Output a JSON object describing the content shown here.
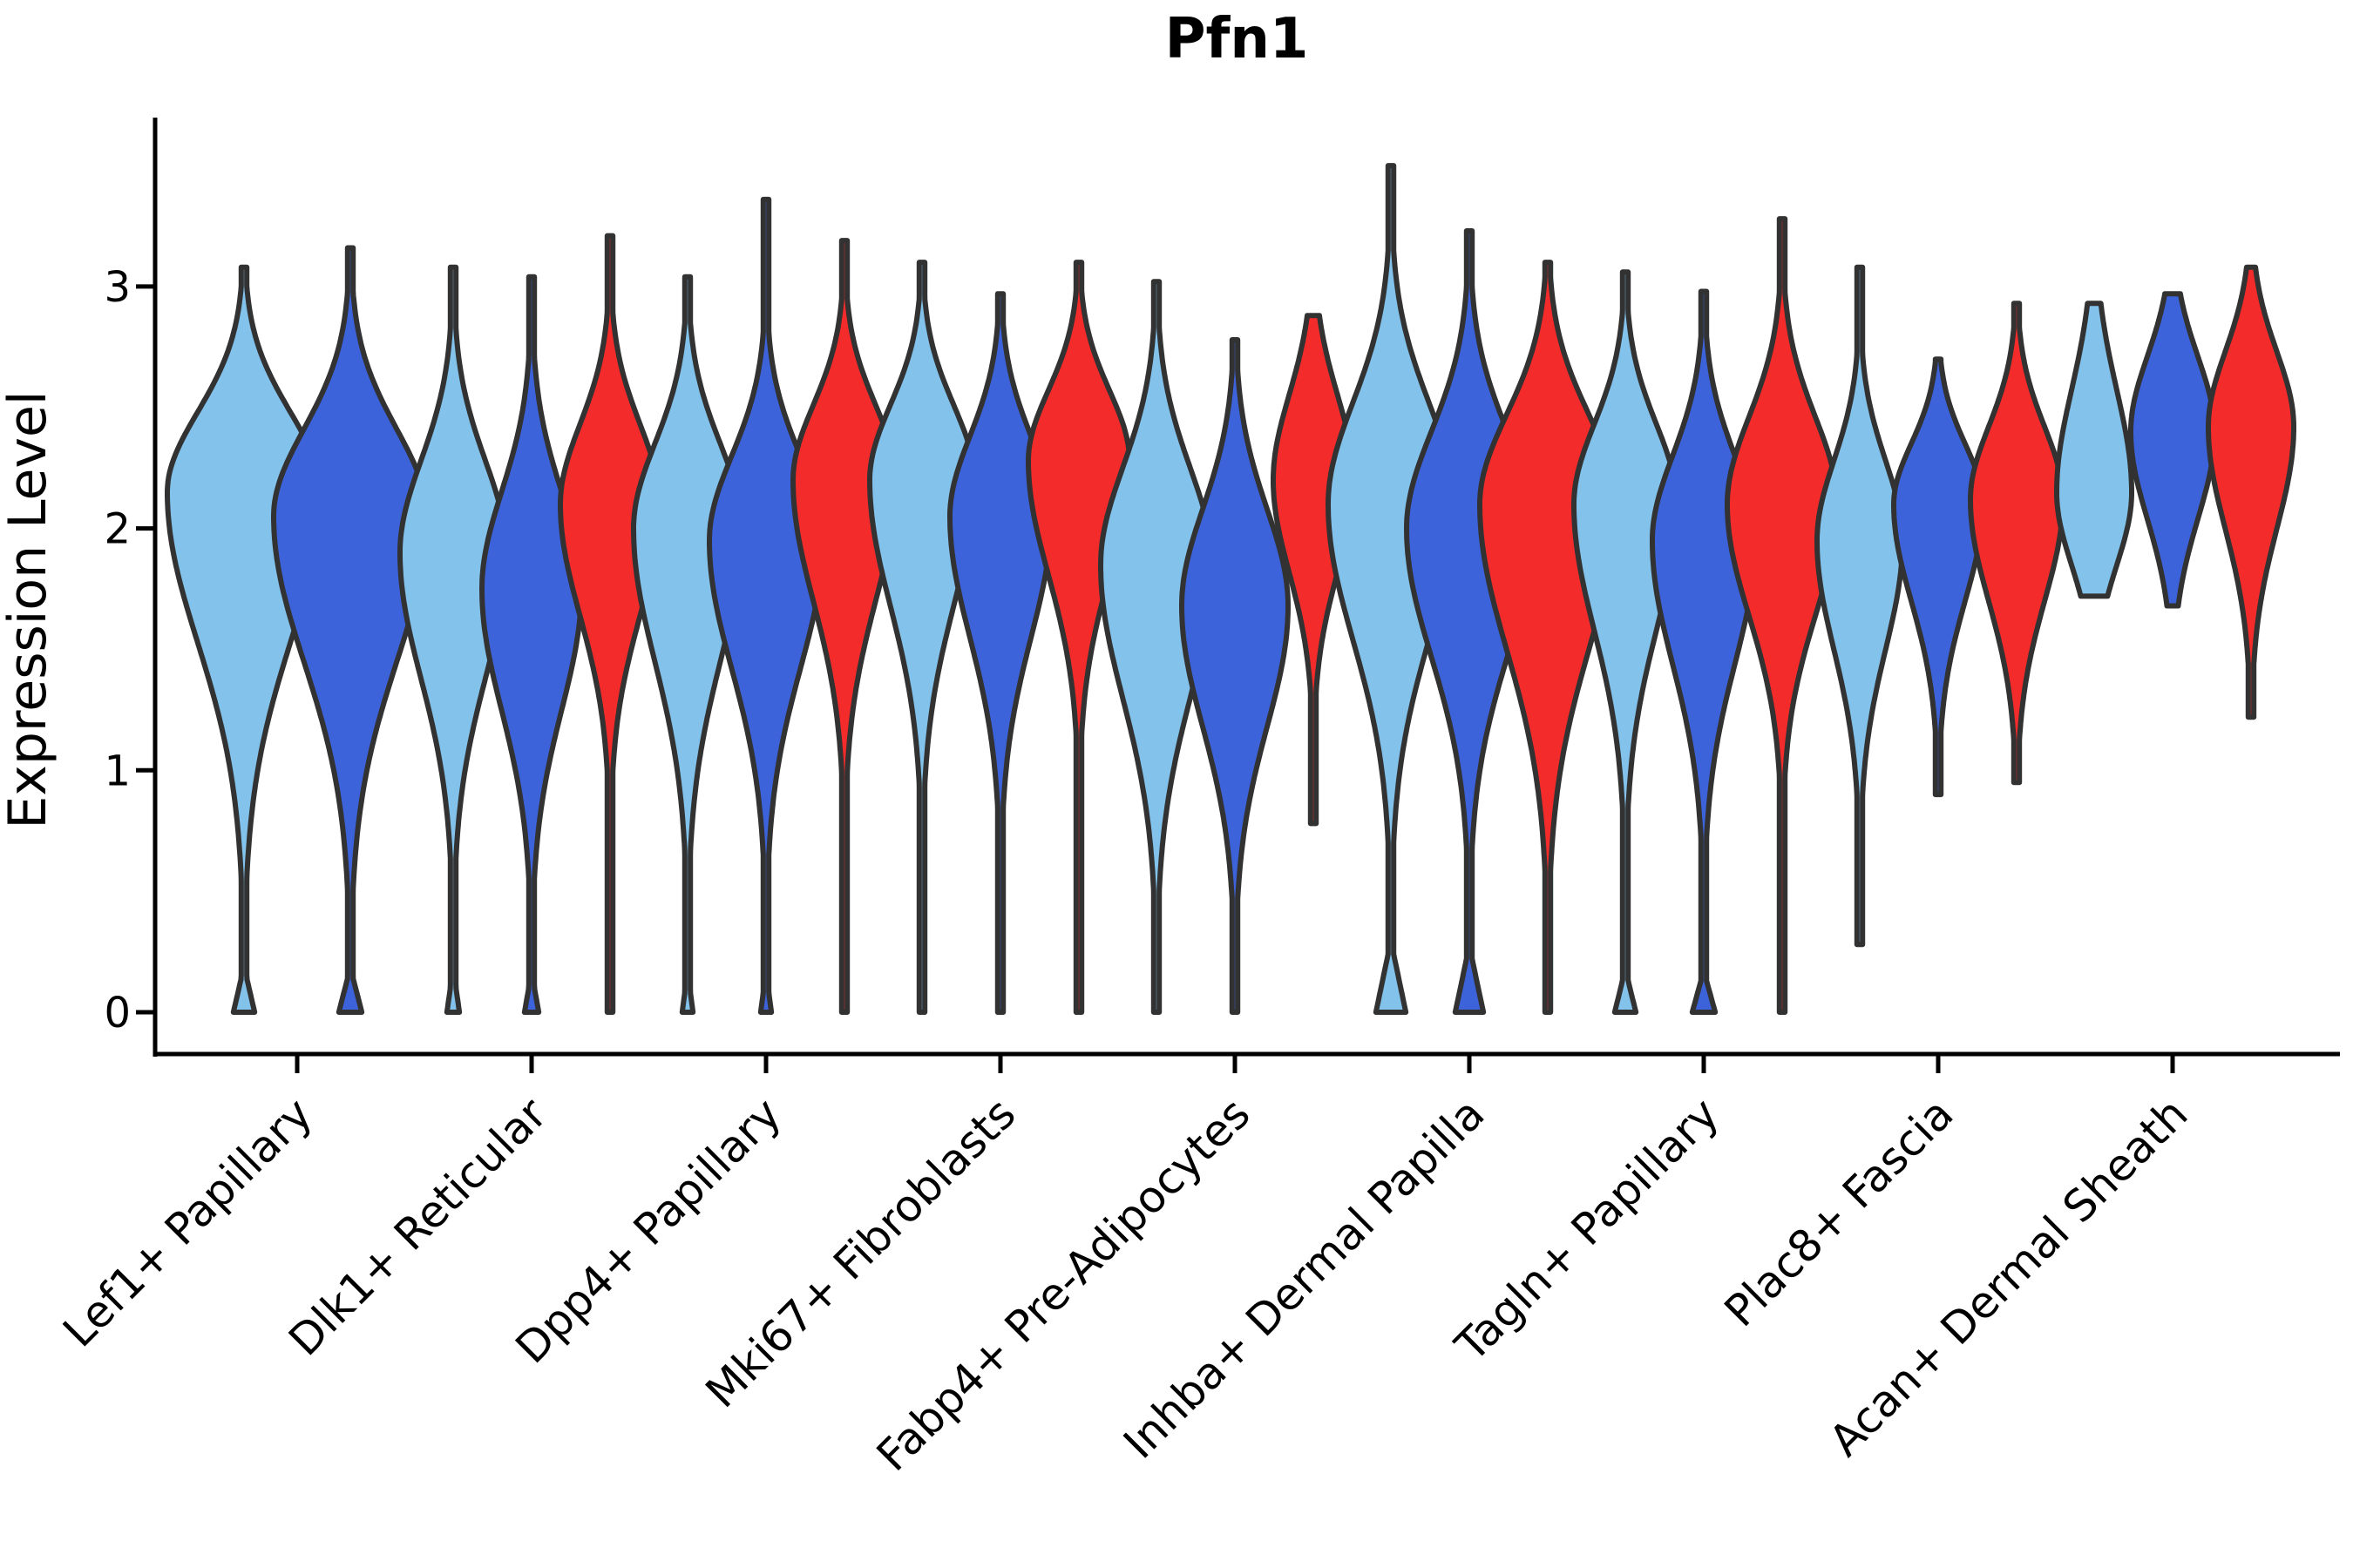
{
  "chart_data": {
    "type": "violin",
    "title": "Pfn1",
    "xlabel": "",
    "ylabel": "Expression Level",
    "yticks": [
      0,
      1,
      2,
      3
    ],
    "ylim": [
      -0.17,
      3.7
    ],
    "grid": false,
    "legend": "none",
    "categories": [
      "Lef1+ Papillary",
      "Dlk1+ Reticular",
      "Dpp4+ Papillary",
      "Mki67+ Fibroblasts",
      "Fabp4+ Pre-Adipocytes",
      "Inhba+ Dermal Papilla",
      "Tagln+ Papillary",
      "Plac8+ Fascia",
      "Acan+ Dermal Sheath"
    ],
    "splits": [
      {
        "key": "split-light-blue",
        "color": "#82C2EB"
      },
      {
        "key": "split-dark-blue",
        "color": "#3D63DB"
      },
      {
        "key": "split-red",
        "color": "#F32B2B"
      }
    ],
    "outline_color": "#323232",
    "violins": [
      {
        "category": 0,
        "split": 0,
        "peak": 2.15,
        "spread_above": 0.33,
        "spread_below": 0.62,
        "max_halfwidth": 88,
        "min": 0,
        "max": 3.08,
        "foot_halfwidth": 9,
        "foot_height": 0.14
      },
      {
        "category": 0,
        "split": 1,
        "peak": 2.05,
        "spread_above": 0.36,
        "spread_below": 0.6,
        "max_halfwidth": 88,
        "min": 0,
        "max": 3.16,
        "foot_halfwidth": 10,
        "foot_height": 0.14
      },
      {
        "category": 1,
        "split": 0,
        "peak": 1.9,
        "spread_above": 0.38,
        "spread_below": 0.52,
        "max_halfwidth": 61,
        "min": 0,
        "max": 3.08,
        "foot_halfwidth": 4,
        "foot_height": 0.1
      },
      {
        "category": 1,
        "split": 1,
        "peak": 1.75,
        "spread_above": 0.4,
        "spread_below": 0.5,
        "max_halfwidth": 57,
        "min": 0,
        "max": 3.04,
        "foot_halfwidth": 5,
        "foot_height": 0.1
      },
      {
        "category": 1,
        "split": 2,
        "peak": 2.1,
        "spread_above": 0.33,
        "spread_below": 0.46,
        "max_halfwidth": 57,
        "min": 0,
        "max": 3.21,
        "foot_halfwidth": 0,
        "foot_height": 0
      },
      {
        "category": 2,
        "split": 0,
        "peak": 2.0,
        "spread_above": 0.35,
        "spread_below": 0.55,
        "max_halfwidth": 62,
        "min": 0,
        "max": 3.04,
        "foot_halfwidth": 3,
        "foot_height": 0.08
      },
      {
        "category": 2,
        "split": 1,
        "peak": 1.95,
        "spread_above": 0.35,
        "spread_below": 0.53,
        "max_halfwidth": 65,
        "min": 0,
        "max": 3.36,
        "foot_halfwidth": 3,
        "foot_height": 0.08
      },
      {
        "category": 2,
        "split": 2,
        "peak": 2.2,
        "spread_above": 0.31,
        "spread_below": 0.5,
        "max_halfwidth": 59,
        "min": 0,
        "max": 3.19,
        "foot_halfwidth": 0,
        "foot_height": 0
      },
      {
        "category": 3,
        "split": 0,
        "peak": 2.2,
        "spread_above": 0.31,
        "spread_below": 0.52,
        "max_halfwidth": 60,
        "min": 0,
        "max": 3.1,
        "foot_halfwidth": 0,
        "foot_height": 0
      },
      {
        "category": 3,
        "split": 1,
        "peak": 2.05,
        "spread_above": 0.33,
        "spread_below": 0.5,
        "max_halfwidth": 58,
        "min": 0,
        "max": 2.97,
        "foot_halfwidth": 0,
        "foot_height": 0
      },
      {
        "category": 3,
        "split": 2,
        "peak": 2.28,
        "spread_above": 0.29,
        "spread_below": 0.47,
        "max_halfwidth": 58,
        "min": 0,
        "max": 3.1,
        "foot_halfwidth": 0,
        "foot_height": 0
      },
      {
        "category": 4,
        "split": 0,
        "peak": 1.85,
        "spread_above": 0.4,
        "spread_below": 0.55,
        "max_halfwidth": 64,
        "min": 0,
        "max": 3.02,
        "foot_halfwidth": 0,
        "foot_height": 0
      },
      {
        "category": 4,
        "split": 1,
        "peak": 1.68,
        "spread_above": 0.4,
        "spread_below": 0.5,
        "max_halfwidth": 61,
        "min": 0,
        "max": 2.78,
        "foot_halfwidth": 0,
        "foot_height": 0
      },
      {
        "category": 4,
        "split": 2,
        "peak": 2.2,
        "spread_above": 0.35,
        "spread_below": 0.38,
        "max_halfwidth": 46,
        "min": 0.78,
        "max": 2.88,
        "foot_halfwidth": 0,
        "foot_height": 0
      },
      {
        "category": 5,
        "split": 0,
        "peak": 2.1,
        "spread_above": 0.42,
        "spread_below": 0.56,
        "max_halfwidth": 72,
        "min": 0,
        "max": 3.5,
        "foot_halfwidth": 14,
        "foot_height": 0.24
      },
      {
        "category": 5,
        "split": 1,
        "peak": 2.0,
        "spread_above": 0.4,
        "spread_below": 0.53,
        "max_halfwidth": 72,
        "min": 0,
        "max": 3.23,
        "foot_halfwidth": 13,
        "foot_height": 0.22
      },
      {
        "category": 5,
        "split": 2,
        "peak": 2.1,
        "spread_above": 0.37,
        "spread_below": 0.6,
        "max_halfwidth": 78,
        "min": 0,
        "max": 3.1,
        "foot_halfwidth": 0,
        "foot_height": 0
      },
      {
        "category": 6,
        "split": 0,
        "peak": 2.1,
        "spread_above": 0.33,
        "spread_below": 0.52,
        "max_halfwidth": 59,
        "min": 0,
        "max": 3.06,
        "foot_halfwidth": 9,
        "foot_height": 0.13
      },
      {
        "category": 6,
        "split": 1,
        "peak": 1.95,
        "spread_above": 0.35,
        "spread_below": 0.51,
        "max_halfwidth": 59,
        "min": 0,
        "max": 2.98,
        "foot_halfwidth": 10,
        "foot_height": 0.13
      },
      {
        "category": 6,
        "split": 2,
        "peak": 2.1,
        "spread_above": 0.36,
        "spread_below": 0.46,
        "max_halfwidth": 63,
        "min": 0,
        "max": 3.28,
        "foot_halfwidth": 0,
        "foot_height": 0
      },
      {
        "category": 7,
        "split": 0,
        "peak": 1.95,
        "spread_above": 0.33,
        "spread_below": 0.45,
        "max_halfwidth": 49,
        "min": 0.28,
        "max": 3.08,
        "foot_halfwidth": 0,
        "foot_height": 0
      },
      {
        "category": 7,
        "split": 1,
        "peak": 2.1,
        "spread_above": 0.25,
        "spread_below": 0.4,
        "max_halfwidth": 51,
        "min": 0.9,
        "max": 2.7,
        "foot_halfwidth": 0,
        "foot_height": 0
      },
      {
        "category": 7,
        "split": 2,
        "peak": 2.12,
        "spread_above": 0.3,
        "spread_below": 0.42,
        "max_halfwidth": 53,
        "min": 0.95,
        "max": 2.93,
        "foot_halfwidth": 0,
        "foot_height": 0
      },
      {
        "category": 8,
        "split": 0,
        "peak": 2.15,
        "spread_above": 0.42,
        "spread_below": 0.3,
        "max_halfwidth": 43,
        "min": 1.72,
        "max": 2.93,
        "foot_halfwidth": 0,
        "foot_height": 0
      },
      {
        "category": 8,
        "split": 1,
        "peak": 2.4,
        "spread_above": 0.31,
        "spread_below": 0.36,
        "max_halfwidth": 48,
        "min": 1.68,
        "max": 2.97,
        "foot_halfwidth": 0,
        "foot_height": 0
      },
      {
        "category": 8,
        "split": 2,
        "peak": 2.42,
        "spread_above": 0.31,
        "spread_below": 0.42,
        "max_halfwidth": 49,
        "min": 1.22,
        "max": 3.08,
        "foot_halfwidth": 0,
        "foot_height": 0
      }
    ]
  }
}
